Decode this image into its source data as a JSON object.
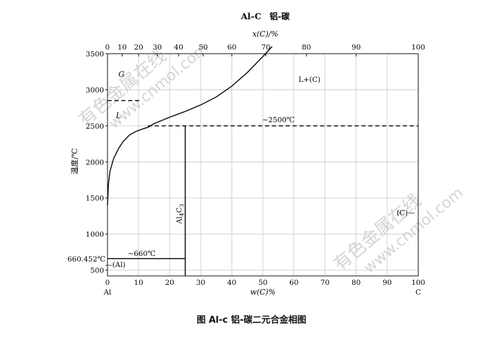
{
  "chart_data": {
    "type": "line",
    "title": "Al–C　铝-碳",
    "caption": "图 Al-c 铝-碳二元合金相图",
    "top_axis": {
      "label": "x(C)/%",
      "ticks": [
        "0",
        "10",
        "20",
        "30",
        "40",
        "50",
        "60",
        "70",
        "80",
        "90",
        "100"
      ],
      "range": [
        0,
        100
      ]
    },
    "xaxis": {
      "label": "w(C)%",
      "ticks": [
        "0",
        "10",
        "20",
        "30",
        "40",
        "50",
        "60",
        "70",
        "80",
        "90",
        "100"
      ],
      "range": [
        0,
        100
      ],
      "left_end": "Al",
      "right_end": "C"
    },
    "yaxis": {
      "label": "温度/℃",
      "ticks": [
        500,
        1000,
        1500,
        2000,
        2500,
        3000,
        3500
      ],
      "range": [
        420,
        3500
      ],
      "extra_tick": "660.452℃"
    },
    "grid": true,
    "series": [
      {
        "role": "liquidus",
        "style": "solid",
        "points": [
          [
            0,
            1400
          ],
          [
            0.3,
            1700
          ],
          [
            0.8,
            1870
          ],
          [
            2,
            2050
          ],
          [
            3.5,
            2180
          ],
          [
            5,
            2280
          ],
          [
            7,
            2370
          ],
          [
            9,
            2420
          ],
          [
            11.5,
            2460
          ],
          [
            13,
            2480
          ],
          [
            15,
            2530
          ],
          [
            20,
            2620
          ],
          [
            25,
            2700
          ],
          [
            30,
            2790
          ],
          [
            35,
            2900
          ],
          [
            40,
            3050
          ],
          [
            45,
            3240
          ],
          [
            50,
            3460
          ],
          [
            53,
            3600
          ]
        ]
      },
      {
        "role": "eutectic-2500",
        "style": "dashed",
        "points": [
          [
            13,
            2500
          ],
          [
            100,
            2500
          ]
        ]
      },
      {
        "role": "Al4C3-phase",
        "style": "solid",
        "points": [
          [
            25,
            420
          ],
          [
            25,
            2500
          ]
        ]
      },
      {
        "role": "eutectic-660",
        "style": "solid",
        "points": [
          [
            0,
            660.452
          ],
          [
            25,
            660.452
          ]
        ]
      },
      {
        "role": "upper-dashed",
        "style": "dashed",
        "points": [
          [
            0,
            2850
          ],
          [
            10.4,
            2850
          ]
        ]
      }
    ],
    "annotations": [
      {
        "text": "G",
        "x": 4.5,
        "y": 3180,
        "italic": true
      },
      {
        "text": "L",
        "x": 3.5,
        "y": 2610,
        "italic": true
      },
      {
        "text": "L+(C)",
        "x": 65,
        "y": 3110,
        "italic": false
      },
      {
        "text": "~2500℃",
        "x": 55,
        "y": 2550,
        "italic": false
      },
      {
        "text": "~660℃",
        "x": 11,
        "y": 695,
        "italic": false
      },
      {
        "text": "—(Al)",
        "x": 2.5,
        "y": 545,
        "italic": false
      },
      {
        "text": "(C)—",
        "x": 96,
        "y": 1265,
        "italic": false
      }
    ],
    "phase_label": {
      "base": "Al",
      "sub1": "4",
      "mid": "C",
      "sub2": "3",
      "x": 23.8,
      "y": 1280
    }
  },
  "watermark": {
    "line1": "有色金属在线",
    "line2": "www.cnmol.com"
  }
}
